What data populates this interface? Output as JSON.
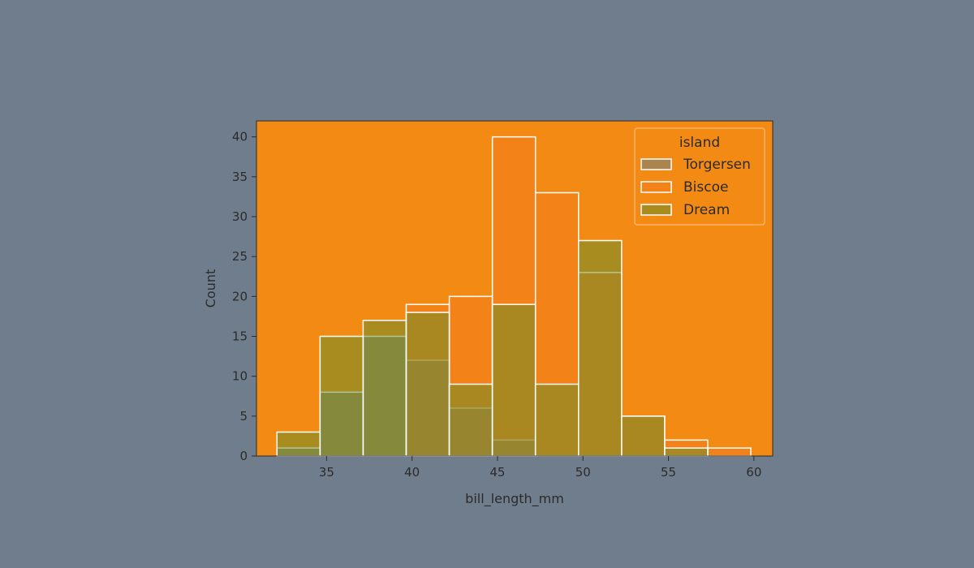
{
  "colors": {
    "page_background": "#6f7d8c",
    "plot_background": "#f28a14",
    "bar_edge": "#ffffff",
    "Torgersen": "#62808a",
    "Biscoe": "#f47a1c",
    "Dream": "#5f8e2a"
  },
  "chart_data": {
    "type": "bar",
    "subtype": "overlaid-histogram",
    "title": "",
    "xlabel": "bill_length_mm",
    "ylabel": "Count",
    "xlim": [
      30.9,
      61.1
    ],
    "ylim": [
      0,
      42
    ],
    "x_ticks": [
      35,
      40,
      45,
      50,
      55,
      60
    ],
    "y_ticks": [
      0,
      5,
      10,
      15,
      20,
      25,
      30,
      35,
      40
    ],
    "grid": false,
    "bin_edges": [
      32.1,
      34.62,
      37.14,
      39.66,
      42.18,
      44.7,
      47.22,
      49.74,
      52.26,
      54.78,
      57.3,
      59.82
    ],
    "legend": {
      "title": "island",
      "placement": "top-right"
    },
    "series": [
      {
        "name": "Torgersen",
        "values": [
          1,
          8,
          15,
          12,
          6,
          2,
          0,
          0,
          0,
          0,
          0
        ]
      },
      {
        "name": "Biscoe",
        "values": [
          0,
          0,
          0,
          19,
          20,
          40,
          33,
          23,
          5,
          2,
          1
        ]
      },
      {
        "name": "Dream",
        "values": [
          3,
          15,
          17,
          18,
          9,
          19,
          9,
          27,
          5,
          1,
          0
        ]
      }
    ]
  }
}
